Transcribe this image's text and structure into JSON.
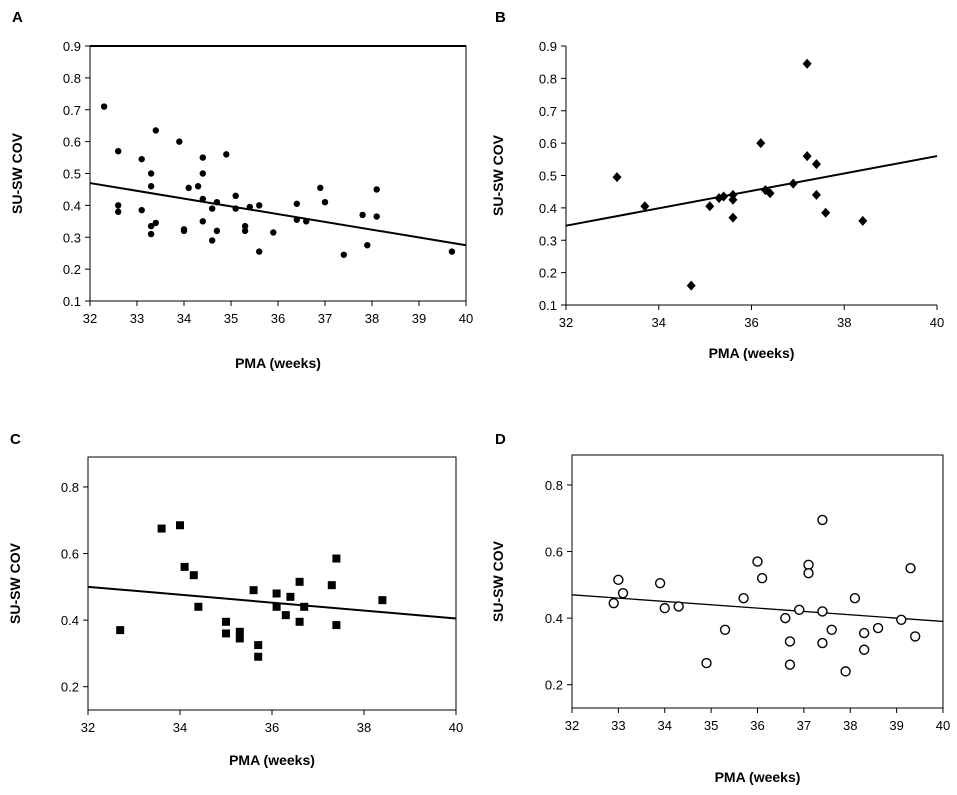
{
  "figure": {
    "panels": [
      "A",
      "B",
      "C",
      "D"
    ]
  },
  "colors": {
    "ink": "#000000",
    "background": "#ffffff"
  },
  "chart_data": [
    {
      "panel": "A",
      "type": "scatter",
      "marker": "filled-circle",
      "xlabel": "PMA (weeks)",
      "ylabel": "SU-SW COV",
      "xlim": [
        32,
        40
      ],
      "ylim": [
        0.1,
        0.9
      ],
      "xticks": [
        32,
        33,
        34,
        35,
        36,
        37,
        38,
        39,
        40
      ],
      "yticks": [
        0.1,
        0.2,
        0.3,
        0.4,
        0.5,
        0.6,
        0.7,
        0.8,
        0.9
      ],
      "tick_decimals": 1,
      "frame": "box",
      "points": [
        [
          32.3,
          0.71
        ],
        [
          32.6,
          0.57
        ],
        [
          32.6,
          0.4
        ],
        [
          32.6,
          0.38
        ],
        [
          33.1,
          0.545
        ],
        [
          33.1,
          0.385
        ],
        [
          33.3,
          0.5
        ],
        [
          33.3,
          0.46
        ],
        [
          33.3,
          0.335
        ],
        [
          33.3,
          0.31
        ],
        [
          33.4,
          0.635
        ],
        [
          33.4,
          0.345
        ],
        [
          33.9,
          0.6
        ],
        [
          34.0,
          0.325
        ],
        [
          34.0,
          0.32
        ],
        [
          34.1,
          0.455
        ],
        [
          34.3,
          0.46
        ],
        [
          34.4,
          0.55
        ],
        [
          34.4,
          0.5
        ],
        [
          34.4,
          0.42
        ],
        [
          34.4,
          0.35
        ],
        [
          34.6,
          0.39
        ],
        [
          34.6,
          0.29
        ],
        [
          34.7,
          0.41
        ],
        [
          34.7,
          0.32
        ],
        [
          34.9,
          0.56
        ],
        [
          35.1,
          0.43
        ],
        [
          35.1,
          0.39
        ],
        [
          35.3,
          0.335
        ],
        [
          35.3,
          0.32
        ],
        [
          35.4,
          0.395
        ],
        [
          35.6,
          0.4
        ],
        [
          35.6,
          0.255
        ],
        [
          35.9,
          0.315
        ],
        [
          36.4,
          0.405
        ],
        [
          36.4,
          0.355
        ],
        [
          36.6,
          0.35
        ],
        [
          36.9,
          0.455
        ],
        [
          37.0,
          0.41
        ],
        [
          37.4,
          0.245
        ],
        [
          37.8,
          0.37
        ],
        [
          37.9,
          0.275
        ],
        [
          38.1,
          0.45
        ],
        [
          38.1,
          0.365
        ],
        [
          39.7,
          0.255
        ]
      ],
      "trendline": {
        "from": [
          32,
          0.47
        ],
        "to": [
          40,
          0.275
        ]
      }
    },
    {
      "panel": "B",
      "type": "scatter",
      "marker": "filled-diamond",
      "xlabel": "PMA (weeks)",
      "ylabel": "SU-SW COV",
      "xlim": [
        32,
        40
      ],
      "ylim": [
        0.1,
        0.9
      ],
      "xticks": [
        32,
        34,
        36,
        38,
        40
      ],
      "yticks": [
        0.1,
        0.2,
        0.3,
        0.4,
        0.5,
        0.6,
        0.7,
        0.8,
        0.9
      ],
      "tick_decimals": 1,
      "frame": "axes",
      "points": [
        [
          33.1,
          0.495
        ],
        [
          33.7,
          0.405
        ],
        [
          34.7,
          0.16
        ],
        [
          35.1,
          0.405
        ],
        [
          35.3,
          0.43
        ],
        [
          35.4,
          0.435
        ],
        [
          35.6,
          0.44
        ],
        [
          35.6,
          0.425
        ],
        [
          35.6,
          0.37
        ],
        [
          36.2,
          0.6
        ],
        [
          36.3,
          0.455
        ],
        [
          36.4,
          0.445
        ],
        [
          36.9,
          0.475
        ],
        [
          37.2,
          0.845
        ],
        [
          37.2,
          0.56
        ],
        [
          37.4,
          0.535
        ],
        [
          37.4,
          0.44
        ],
        [
          37.6,
          0.385
        ],
        [
          38.4,
          0.36
        ]
      ],
      "trendline": {
        "from": [
          32,
          0.345
        ],
        "to": [
          40,
          0.56
        ]
      }
    },
    {
      "panel": "C",
      "type": "scatter",
      "marker": "filled-square",
      "xlabel": "PMA (weeks)",
      "ylabel": "SU-SW COV",
      "xlim": [
        32,
        40
      ],
      "ylim": [
        0.13,
        0.89
      ],
      "xticks": [
        32,
        34,
        36,
        38,
        40
      ],
      "yticks": [
        0.2,
        0.4,
        0.6,
        0.8
      ],
      "tick_decimals": 1,
      "frame": "box",
      "points": [
        [
          32.7,
          0.37
        ],
        [
          33.6,
          0.675
        ],
        [
          34.0,
          0.685
        ],
        [
          34.1,
          0.56
        ],
        [
          34.3,
          0.535
        ],
        [
          34.4,
          0.44
        ],
        [
          35.0,
          0.395
        ],
        [
          35.0,
          0.36
        ],
        [
          35.3,
          0.365
        ],
        [
          35.3,
          0.345
        ],
        [
          35.6,
          0.49
        ],
        [
          35.7,
          0.325
        ],
        [
          35.7,
          0.29
        ],
        [
          36.1,
          0.48
        ],
        [
          36.1,
          0.44
        ],
        [
          36.3,
          0.415
        ],
        [
          36.4,
          0.47
        ],
        [
          36.6,
          0.515
        ],
        [
          36.6,
          0.395
        ],
        [
          36.7,
          0.44
        ],
        [
          37.3,
          0.505
        ],
        [
          37.4,
          0.585
        ],
        [
          37.4,
          0.385
        ],
        [
          38.4,
          0.46
        ]
      ],
      "trendline": {
        "from": [
          32,
          0.5
        ],
        "to": [
          40,
          0.405
        ]
      }
    },
    {
      "panel": "D",
      "type": "scatter",
      "marker": "open-circle",
      "xlabel": "PMA (weeks)",
      "ylabel": "SU-SW COV",
      "xlim": [
        32,
        40
      ],
      "ylim": [
        0.13,
        0.89
      ],
      "xticks": [
        32,
        33,
        34,
        35,
        36,
        37,
        38,
        39,
        40
      ],
      "yticks": [
        0.2,
        0.4,
        0.6,
        0.8
      ],
      "tick_decimals": 1,
      "frame": "box",
      "points": [
        [
          32.9,
          0.445
        ],
        [
          33.0,
          0.515
        ],
        [
          33.1,
          0.475
        ],
        [
          33.9,
          0.505
        ],
        [
          34.0,
          0.43
        ],
        [
          34.3,
          0.435
        ],
        [
          34.9,
          0.265
        ],
        [
          35.3,
          0.365
        ],
        [
          35.7,
          0.46
        ],
        [
          36.0,
          0.57
        ],
        [
          36.1,
          0.52
        ],
        [
          36.6,
          0.4
        ],
        [
          36.7,
          0.33
        ],
        [
          36.7,
          0.26
        ],
        [
          36.9,
          0.425
        ],
        [
          37.1,
          0.56
        ],
        [
          37.1,
          0.535
        ],
        [
          37.4,
          0.695
        ],
        [
          37.4,
          0.42
        ],
        [
          37.4,
          0.325
        ],
        [
          37.6,
          0.365
        ],
        [
          37.9,
          0.24
        ],
        [
          38.1,
          0.46
        ],
        [
          38.3,
          0.355
        ],
        [
          38.3,
          0.305
        ],
        [
          38.6,
          0.37
        ],
        [
          39.1,
          0.395
        ],
        [
          39.3,
          0.55
        ],
        [
          39.4,
          0.345
        ]
      ],
      "trendline": {
        "from": [
          32,
          0.47
        ],
        "to": [
          40,
          0.39
        ]
      }
    }
  ]
}
